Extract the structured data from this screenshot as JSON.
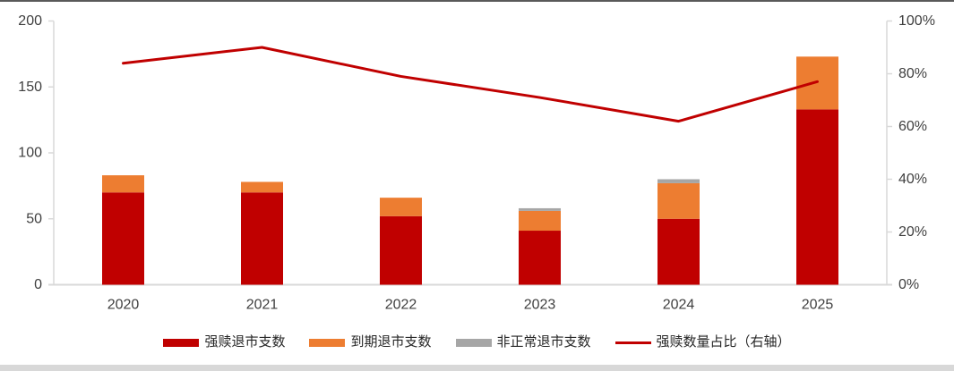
{
  "colors": {
    "red": "#C00000",
    "orange": "#ED7D31",
    "gray": "#A6A6A6",
    "line": "#C00000",
    "axis_line": "#D9D9D9",
    "axis_text": "#3F3F3F",
    "top_border": "#595959",
    "bottom_band": "#D8D8D8"
  },
  "chart_data": {
    "type": "bar",
    "subtype": "stacked-column-with-line",
    "categories": [
      "2020",
      "2021",
      "2022",
      "2023",
      "2024",
      "2025"
    ],
    "series": [
      {
        "name": "强赎退市支数",
        "kind": "bar",
        "color_key": "red",
        "values": [
          70,
          70,
          52,
          41,
          50,
          133
        ]
      },
      {
        "name": "到期退市支数",
        "kind": "bar",
        "color_key": "orange",
        "values": [
          13,
          8,
          14,
          15,
          27,
          40
        ]
      },
      {
        "name": "非正常退市支数",
        "kind": "bar",
        "color_key": "gray",
        "values": [
          0,
          0,
          0,
          2,
          3,
          0
        ]
      },
      {
        "name": "强赎数量占比（右轴）",
        "kind": "line",
        "axis": "right",
        "color_key": "line",
        "values": [
          84,
          90,
          79,
          71,
          62,
          77
        ]
      }
    ],
    "stacked_totals": [
      83,
      78,
      66,
      58,
      80,
      173
    ],
    "left_axis": {
      "min": 0,
      "max": 200,
      "ticks": [
        {
          "label": "0",
          "value": 0
        },
        {
          "label": "50",
          "value": 50
        },
        {
          "label": "100",
          "value": 100
        },
        {
          "label": "150",
          "value": 150
        },
        {
          "label": "200",
          "value": 200
        }
      ]
    },
    "right_axis": {
      "min": 0,
      "max": 100,
      "ticks": [
        {
          "label": "0%",
          "value": 0
        },
        {
          "label": "20%",
          "value": 20
        },
        {
          "label": "40%",
          "value": 40
        },
        {
          "label": "60%",
          "value": 60
        },
        {
          "label": "80%",
          "value": 80
        },
        {
          "label": "100%",
          "value": 100
        }
      ]
    },
    "grid": false,
    "legend_position": "bottom",
    "title": "",
    "xlabel": "",
    "ylabel": ""
  },
  "legend": {
    "items": [
      {
        "label": "强赎退市支数",
        "swatch": "box",
        "color_key": "red"
      },
      {
        "label": "到期退市支数",
        "swatch": "box",
        "color_key": "orange"
      },
      {
        "label": "非正常退市支数",
        "swatch": "box",
        "color_key": "gray"
      },
      {
        "label": "强赎数量占比（右轴）",
        "swatch": "line",
        "color_key": "line"
      }
    ]
  }
}
